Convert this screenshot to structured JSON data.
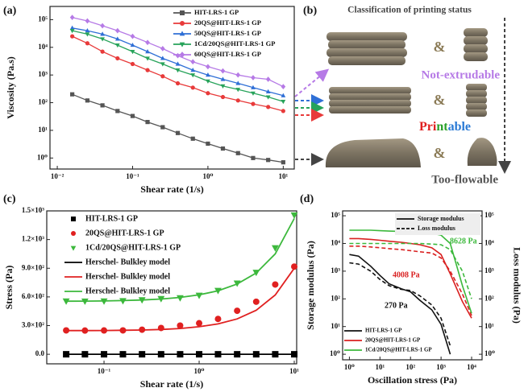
{
  "chart_data": [
    {
      "panel": "(a)",
      "type": "line",
      "xlabel": "Shear rate (1/s)",
      "ylabel": "Viscosity (Pa.s)",
      "xscale": "log",
      "yscale": "log",
      "xlim": [
        0.008,
        14
      ],
      "ylim": [
        0.4,
        300000
      ],
      "xticks": [
        {
          "value": 0.01,
          "label": "10⁻²"
        },
        {
          "value": 0.1,
          "label": "10⁻¹"
        },
        {
          "value": 1,
          "label": "10⁰"
        },
        {
          "value": 10,
          "label": "10¹"
        }
      ],
      "yticks": [
        {
          "value": 1,
          "label": "10⁰"
        },
        {
          "value": 10,
          "label": "10¹"
        },
        {
          "value": 100,
          "label": "10²"
        },
        {
          "value": 1000,
          "label": "10³"
        },
        {
          "value": 10000,
          "label": "10⁴"
        },
        {
          "value": 100000,
          "label": "10⁵"
        }
      ],
      "legend": "upper right",
      "x": [
        0.0158,
        0.0251,
        0.0398,
        0.0631,
        0.1,
        0.158,
        0.251,
        0.398,
        0.631,
        1,
        1.58,
        2.51,
        3.98,
        6.31,
        10
      ],
      "series": [
        {
          "name": "HIT-LRS-1 GP",
          "color": "#555555",
          "marker": "square",
          "values": [
            200,
            120,
            80,
            50,
            33,
            20,
            13,
            8,
            5,
            3.3,
            2.2,
            1.5,
            1.0,
            0.85,
            0.7
          ]
        },
        {
          "name": "20QS@HIT-LRS-1 GP",
          "color": "#e83a3a",
          "marker": "circle",
          "values": [
            25000,
            14000,
            7000,
            4000,
            2500,
            1500,
            900,
            500,
            350,
            220,
            160,
            120,
            90,
            70,
            50
          ]
        },
        {
          "name": "50QS@HIT-LRS-1 GP",
          "color": "#2f6fd6",
          "marker": "triangle-up",
          "values": [
            50000,
            40000,
            30000,
            20000,
            12000,
            7000,
            4000,
            2500,
            1500,
            1000,
            700,
            500,
            350,
            250,
            180
          ]
        },
        {
          "name": "1Cd/20QS@HIT-LRS-1 GP",
          "color": "#27a35a",
          "marker": "triangle-down",
          "values": [
            40000,
            30000,
            20000,
            12000,
            7000,
            4000,
            2500,
            1500,
            1000,
            600,
            400,
            300,
            220,
            160,
            110
          ]
        },
        {
          "name": "60QS@HIT-LRS-1 GP",
          "color": "#b67ae6",
          "marker": "diamond",
          "values": [
            120000,
            90000,
            60000,
            40000,
            25000,
            15000,
            9000,
            5000,
            3000,
            2000,
            1400,
            1000,
            800,
            700,
            380
          ]
        }
      ]
    },
    {
      "panel": "(c)",
      "type": "scatter",
      "xlabel": "Shear rate (1/s)",
      "ylabel": "Stress (Pa)",
      "xscale": "log",
      "xlim": [
        0.025,
        10.6
      ],
      "ylim": [
        -100,
        1500
      ],
      "xticks": [
        {
          "value": 0.1,
          "label": "10⁻¹"
        },
        {
          "value": 1,
          "label": "10⁰"
        },
        {
          "value": 10,
          "label": "10¹"
        }
      ],
      "yticks": [
        {
          "value": 0,
          "label": "0.0"
        },
        {
          "value": 300,
          "label": "3.0×10²"
        },
        {
          "value": 600,
          "label": "6.0×10²"
        },
        {
          "value": 900,
          "label": "9.0×10²"
        },
        {
          "value": 1200,
          "label": "1.2×10³"
        },
        {
          "value": 1500,
          "label": "1.5×10³"
        }
      ],
      "legend": "upper left",
      "x": [
        0.04,
        0.063,
        0.1,
        0.158,
        0.251,
        0.398,
        0.631,
        1,
        1.58,
        2.51,
        3.98,
        6.31,
        10
      ],
      "series": [
        {
          "name": "HIT-LRS-1 GP",
          "color": "#000000",
          "style": "markers",
          "marker": "square",
          "values": [
            0,
            0,
            0,
            0,
            0,
            0,
            0,
            0,
            0,
            0,
            0,
            0,
            0
          ]
        },
        {
          "name": "20QS@HIT-LRS-1 GP",
          "color": "#e02020",
          "style": "markers",
          "marker": "circle",
          "values": [
            250,
            248,
            249,
            250,
            257,
            275,
            300,
            325,
            370,
            455,
            550,
            730,
            917
          ]
        },
        {
          "name": "1Cd/20QS@HIT-LRS-1 GP",
          "color": "#3cb83c",
          "style": "markers",
          "marker": "triangle-down",
          "values": [
            557,
            556,
            557,
            560,
            570,
            583,
            591,
            617,
            668,
            745,
            857,
            1114,
            1457
          ]
        },
        {
          "name": "Herschel- Bulkley model",
          "color": "#000000",
          "style": "line",
          "values": [
            0,
            0,
            0,
            0,
            0,
            0,
            0,
            0,
            0,
            0,
            0,
            0,
            0
          ]
        },
        {
          "name": "Herschel- Bulkley model",
          "color": "#e02020",
          "style": "line",
          "values": [
            248,
            248,
            249,
            251,
            254,
            260,
            270,
            288,
            318,
            370,
            460,
            620,
            900
          ]
        },
        {
          "name": "Herschel- Bulkley model",
          "color": "#3cb83c",
          "style": "line",
          "values": [
            555,
            556,
            558,
            562,
            568,
            578,
            595,
            622,
            665,
            735,
            850,
            1050,
            1420
          ]
        }
      ]
    },
    {
      "panel": "(d)",
      "type": "line",
      "xlabel": "Oscillation stress (Pa)",
      "ylabel": "Storage modulus (Pa)",
      "y2label": "Loss modulus (Pa)",
      "xscale": "log",
      "yscale": "log",
      "xlim": [
        0.6,
        22000
      ],
      "ylim": [
        0.63,
        150000
      ],
      "y2lim": [
        0.63,
        150000
      ],
      "xticks": [
        {
          "value": 1,
          "label": "10⁰"
        },
        {
          "value": 10,
          "label": "10¹"
        },
        {
          "value": 100,
          "label": "10²"
        },
        {
          "value": 1000,
          "label": "10³"
        },
        {
          "value": 10000,
          "label": "10⁴"
        }
      ],
      "yticks": [
        {
          "value": 1,
          "label": "10⁰"
        },
        {
          "value": 10,
          "label": "10¹"
        },
        {
          "value": 100,
          "label": "10²"
        },
        {
          "value": 1000,
          "label": "10³"
        },
        {
          "value": 10000,
          "label": "10⁴"
        },
        {
          "value": 100000,
          "label": "10⁵"
        }
      ],
      "y2ticks": [
        {
          "value": 1,
          "label": "10⁰"
        },
        {
          "value": 10,
          "label": "10¹"
        },
        {
          "value": 100,
          "label": "10²"
        },
        {
          "value": 1000,
          "label": "10³"
        },
        {
          "value": 10000,
          "label": "10⁴"
        },
        {
          "value": 100000,
          "label": "10⁵"
        }
      ],
      "line_styles": [
        {
          "name": "Storage modulus",
          "dashed": false
        },
        {
          "name": "Loss modulus",
          "dashed": true
        }
      ],
      "x": [
        1,
        2,
        5,
        10,
        20,
        50,
        100,
        200,
        500,
        1000,
        2000,
        5000,
        10000
      ],
      "samples": [
        {
          "name": "HIT-LRS-1 GP",
          "color": "#111111",
          "storage": [
            4000,
            3500,
            1500,
            700,
            350,
            230,
            180,
            90,
            40,
            12,
            1.0,
            null,
            null
          ],
          "loss": [
            2000,
            1800,
            1000,
            500,
            300,
            220,
            200,
            130,
            60,
            20,
            2,
            null,
            null
          ]
        },
        {
          "name": "20QS@HIT-LRS-1 GP",
          "color": "#d92020",
          "storage": [
            15000,
            15000,
            14000,
            13000,
            12000,
            11000,
            10000,
            9000,
            7000,
            4000,
            800,
            80,
            20
          ],
          "loss": [
            8000,
            8000,
            7500,
            7000,
            6500,
            6000,
            5500,
            5000,
            4500,
            3000,
            1000,
            150,
            25
          ]
        },
        {
          "name": "1Cd/20QS@HIT-LRS-1 GP",
          "color": "#3cb83c",
          "storage": [
            30000,
            30000,
            30000,
            29000,
            28000,
            27000,
            26000,
            25000,
            23000,
            20000,
            10000,
            300,
            30
          ],
          "loss": [
            10000,
            10000,
            10000,
            10000,
            10000,
            10000,
            10000,
            10000,
            9500,
            9000,
            6000,
            1000,
            100
          ]
        }
      ],
      "annotations": [
        {
          "text": "8628 Pa",
          "color": "#3cb83c"
        },
        {
          "text": "4008 Pa",
          "color": "#d92020"
        },
        {
          "text": "270 Pa",
          "color": "#111111"
        }
      ]
    }
  ],
  "panel_b": {
    "panel": "(b)",
    "title": "Classification of printing status",
    "joiners": [
      "&",
      "&",
      "&"
    ],
    "not_extrudable": {
      "text": "Not-extrudable",
      "color": "#b67ae6"
    },
    "printable": [
      {
        "text": "Pri",
        "color": "#e02020"
      },
      {
        "text": "nt",
        "color": "#2aa02a"
      },
      {
        "text": "able",
        "color": "#2a7ad5"
      }
    ],
    "too_flowable": {
      "text": "Too-flowable",
      "color": "#555555"
    }
  }
}
